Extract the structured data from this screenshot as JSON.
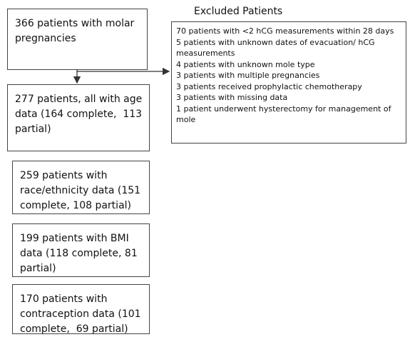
{
  "nodes": [
    {
      "lines": [
        "366 patients with molar",
        "pregnancies"
      ]
    },
    {
      "lines": [
        "277 patients, all with age",
        "data (164 complete,  113",
        "partial)"
      ]
    },
    {
      "lines": [
        "259 patients with",
        "race/ethnicity data (151",
        "complete, 108 partial)"
      ]
    },
    {
      "lines": [
        "199 patients with BMI",
        "data (118 complete, 81",
        "partial)"
      ]
    },
    {
      "lines": [
        "170 patients with",
        "contraception data (101",
        "complete,  69 partial)"
      ]
    }
  ],
  "excluded": {
    "title": "Excluded Patients",
    "lines": [
      "70 patients with <2 hCG measurements within 28 days",
      "5 patients with unknown dates of evacuation/ hCG",
      "measurements",
      "4 patients with unknown mole type",
      "3 patients with multiple pregnancies",
      "3 patients received prophylactic chemotherapy",
      "3 patients with missing data",
      "1 patient underwent hysterectomy for management of",
      "mole"
    ]
  }
}
